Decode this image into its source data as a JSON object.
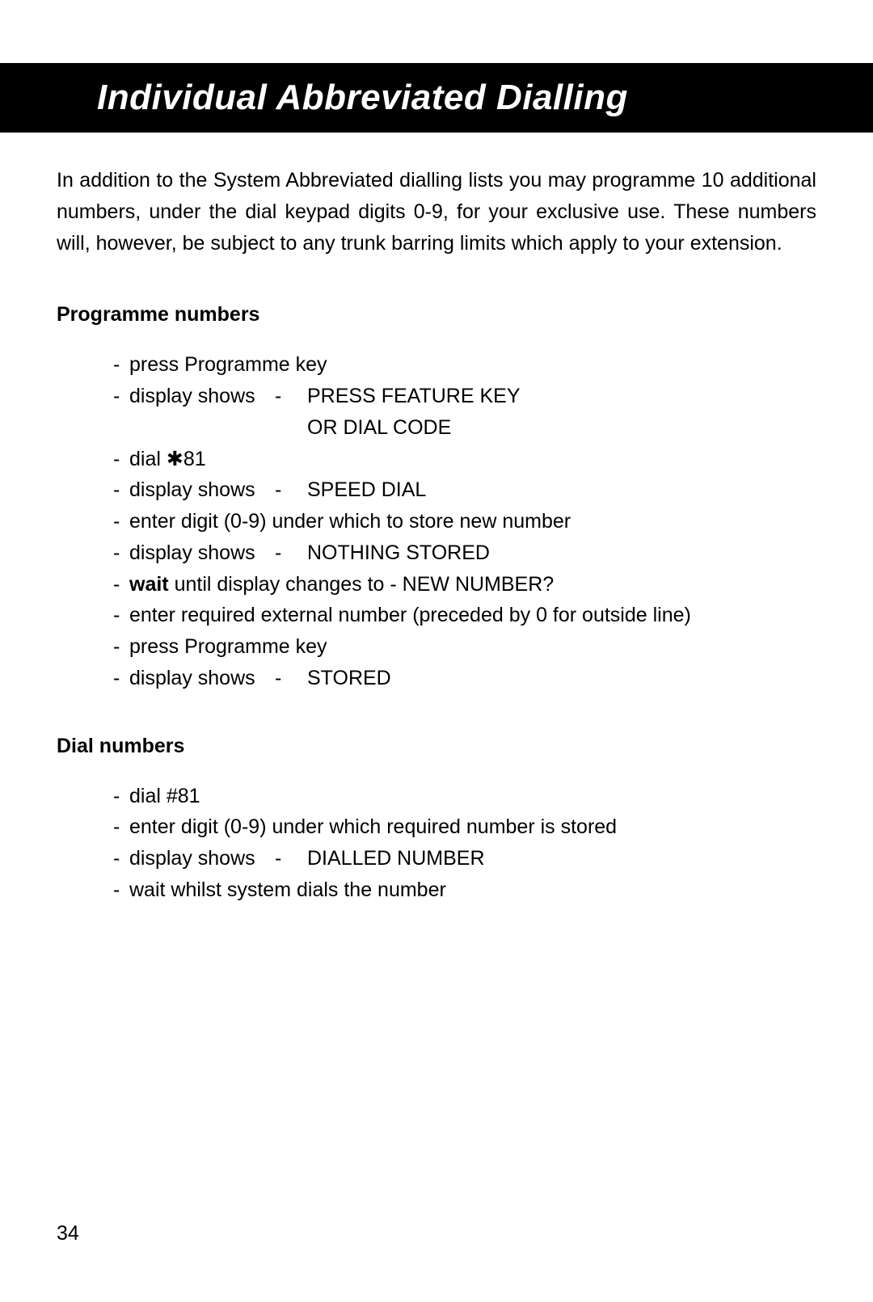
{
  "title": "Individual Abbreviated Dialling",
  "intro": "In addition to the System Abbreviated dialling lists you may programme 10 additional numbers, under the dial keypad digits 0-9, for your exclusive use. These numbers will, however, be subject to any trunk barring limits which apply to your extension.",
  "section1": {
    "heading": "Programme numbers",
    "steps": {
      "s1": "press Programme key",
      "s2_label": "display shows",
      "s2_val": "PRESS FEATURE KEY",
      "s2_cont": "OR DIAL CODE",
      "s3_pre": "dial ",
      "s3_star": "✱",
      "s3_post": "81",
      "s4_label": "display shows",
      "s4_val": "SPEED DIAL",
      "s5": "enter digit (0-9) under which to store new number",
      "s6_label": "display shows",
      "s6_val": "NOTHING STORED",
      "s7_bold": "wait",
      "s7_rest": " until display changes to  -  NEW NUMBER?",
      "s8": "enter required external number (preceded by 0 for outside line)",
      "s9": "press Programme key",
      "s10_label": "display shows",
      "s10_val": "STORED"
    }
  },
  "section2": {
    "heading": "Dial numbers",
    "steps": {
      "s1": "dial #81",
      "s2": "enter digit (0-9) under which required number is stored",
      "s3_label": "display shows",
      "s3_val": "DIALLED NUMBER",
      "s4": "wait whilst system dials the number"
    }
  },
  "pageNumber": "34",
  "colors": {
    "titleBg": "#000000",
    "titleFg": "#ffffff",
    "bodyBg": "#ffffff",
    "bodyFg": "#000000"
  }
}
